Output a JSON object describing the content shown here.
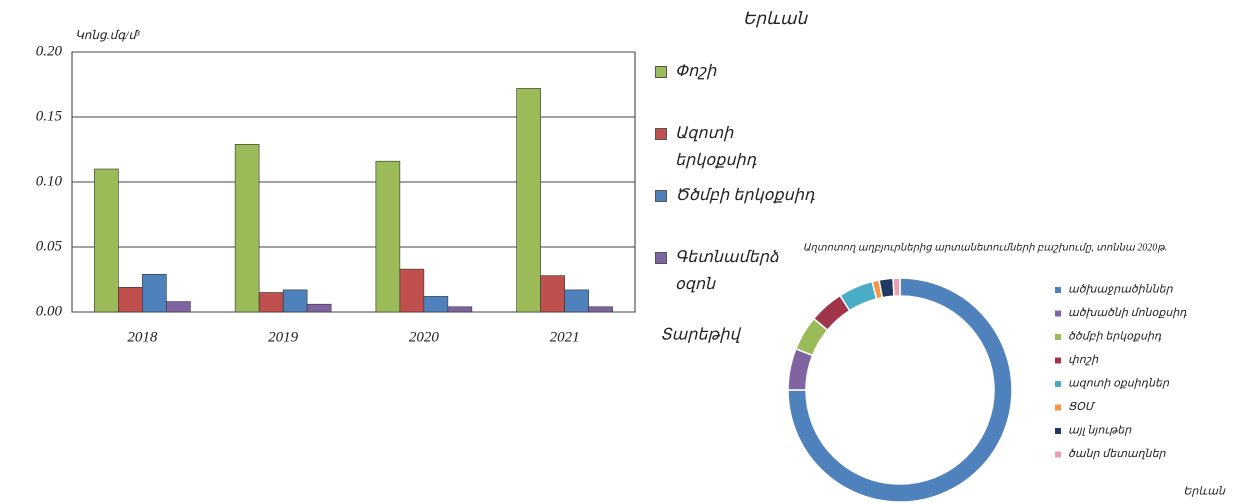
{
  "chart_data": [
    {
      "type": "bar",
      "title": "Երևան",
      "ylabel": "Կոնց.մգ/մ³",
      "xlabel": "Տարեթիվ",
      "categories": [
        "2018",
        "2019",
        "2020",
        "2021"
      ],
      "series": [
        {
          "name": "Փոշի",
          "color": "#9bbb59",
          "values": [
            0.11,
            0.129,
            0.116,
            0.172
          ]
        },
        {
          "name": "Ազոտի երկօքսիդ",
          "color": "#c0504d",
          "values": [
            0.019,
            0.015,
            0.033,
            0.028
          ]
        },
        {
          "name": "Ծծմբի երկօքսիդ",
          "color": "#4f81bd",
          "values": [
            0.029,
            0.017,
            0.012,
            0.017
          ]
        },
        {
          "name": "Գետնամերձ օզոն",
          "color": "#8064a2",
          "values": [
            0.008,
            0.006,
            0.004,
            0.004
          ]
        }
      ],
      "ylim": [
        0,
        0.2
      ],
      "yticks": [
        {
          "value": 0,
          "label": "0.00"
        },
        {
          "value": 0.05,
          "label": "0.05"
        },
        {
          "value": 0.1,
          "label": "0.10"
        },
        {
          "value": 0.15,
          "label": "0.15"
        },
        {
          "value": 0.2,
          "label": "0.20"
        }
      ]
    },
    {
      "type": "pie",
      "donut": true,
      "title": "Աղտոտող աղբյուրներից արտանետումների բաշխումը, տոննա 2020թ.",
      "caption": "Երևան",
      "categories": [
        "ածխաջրածիններ",
        "ածխածնի մոնօքսիդ",
        "ծծմբի երկօքսիդ",
        "փոշի",
        "ազոտի օքսիդներ",
        "ՑՕՄ",
        "այլ նյութեր",
        "ծանր մետաղներ"
      ],
      "values": [
        75,
        6,
        5,
        5,
        5,
        1,
        2,
        1
      ],
      "colors": [
        "#4f81bd",
        "#8064a2",
        "#9bbb59",
        "#a0344a",
        "#4bacc6",
        "#f79646",
        "#1f3864",
        "#e6a0b4"
      ]
    }
  ]
}
